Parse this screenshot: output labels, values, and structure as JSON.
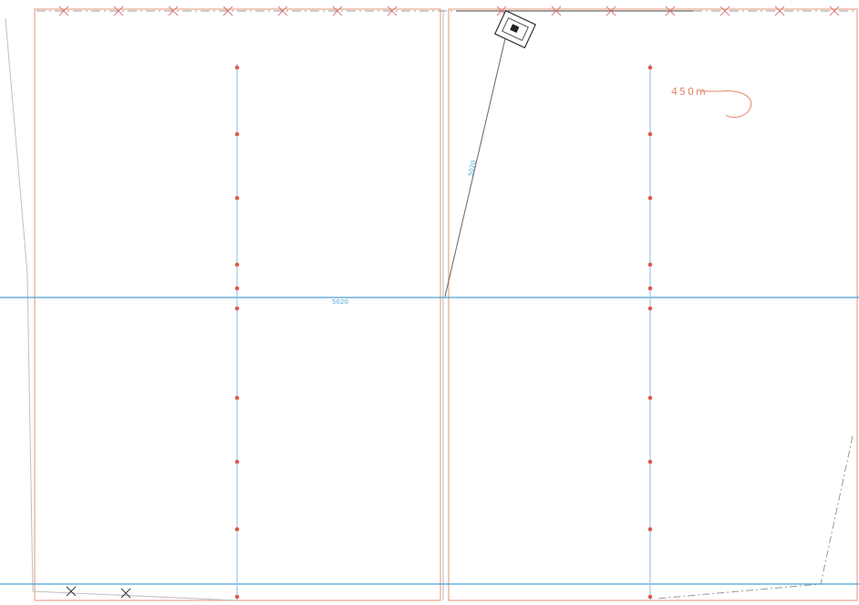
{
  "plan": {
    "distance_label": "450m",
    "diagonal_label": "5020",
    "main_line_label": "5020"
  }
}
